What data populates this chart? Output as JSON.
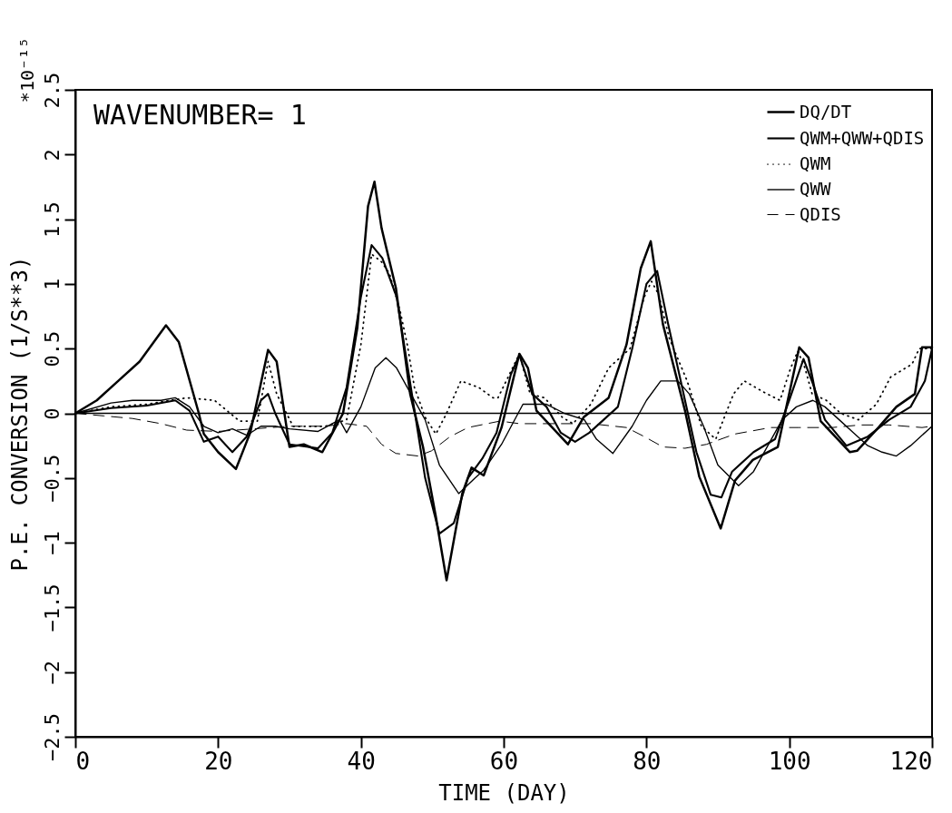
{
  "chart_data": {
    "type": "line",
    "xlabel": "TIME (DAY)",
    "ylabel": "P.E. CONVERSION  (1/S**3)",
    "annotations": [
      "WAVENUMBER= 1",
      "*10⁻¹⁵"
    ],
    "xlim": [
      0,
      120
    ],
    "xticks": [
      0,
      20,
      40,
      60,
      80,
      100,
      120
    ],
    "ylim": [
      -2.5,
      2.5
    ],
    "yticks": [
      -2.5,
      -2,
      -1.5,
      -1,
      -0.5,
      0,
      0.5,
      1,
      1.5,
      2,
      2.5
    ],
    "ref_lines": [
      {
        "axis": "y",
        "value": 0,
        "color": "#000000"
      }
    ],
    "legend": "top right",
    "grid": false,
    "marker": "none",
    "series": [
      {
        "name": "DQ/DT",
        "color": "#000000",
        "line_style": "solid",
        "x": [
          0,
          3,
          6,
          9,
          12.7,
          14.5,
          17.3,
          18,
          20,
          22.5,
          24.5,
          27,
          28.2,
          30,
          32,
          34.6,
          37.5,
          39.5,
          41,
          41.9,
          42.9,
          44.9,
          46.9,
          48.7,
          50.5,
          52,
          54.2,
          55.5,
          57.2,
          59.7,
          62.2,
          63.4,
          64.6,
          69,
          71.2,
          74.7,
          77.2,
          79.2,
          80.6,
          82.3,
          85.4,
          87.4,
          90.4,
          92.4,
          94.9,
          98.4,
          99.4,
          101.4,
          102.7,
          104.4,
          108.5,
          109.5,
          112.5,
          115,
          117.6,
          118.6,
          120
        ],
        "values": [
          0,
          0.1,
          0.25,
          0.4,
          0.68,
          0.55,
          0.0,
          -0.16,
          -0.3,
          -0.43,
          -0.15,
          0.49,
          0.4,
          -0.26,
          -0.24,
          -0.3,
          0.0,
          0.66,
          1.6,
          1.79,
          1.43,
          0.97,
          0.15,
          -0.26,
          -0.8,
          -1.29,
          -0.62,
          -0.42,
          -0.48,
          -0.11,
          0.46,
          0.35,
          0.02,
          -0.24,
          -0.03,
          0.12,
          0.53,
          1.12,
          1.33,
          0.69,
          0.02,
          -0.49,
          -0.89,
          -0.52,
          -0.36,
          -0.26,
          0.0,
          0.51,
          0.43,
          -0.06,
          -0.3,
          -0.29,
          -0.11,
          0.05,
          0.15,
          0.51,
          0.51
        ]
      },
      {
        "name": "QWM+QWW+QDIS",
        "color": "#000000",
        "line_style": "solid",
        "x": [
          0,
          5,
          10,
          14,
          16,
          18,
          20,
          22,
          24,
          26,
          27,
          28,
          30,
          34,
          36,
          38,
          40,
          41.5,
          43,
          45,
          47,
          49,
          51,
          53,
          55,
          57,
          59,
          61,
          62.2,
          64,
          66,
          68,
          70,
          72,
          74,
          76,
          78,
          80,
          81.5,
          83,
          85,
          87,
          89,
          90.5,
          92,
          95,
          98,
          100,
          102,
          103.5,
          105,
          108,
          111,
          114,
          117,
          119,
          120
        ],
        "values": [
          0,
          0.04,
          0.06,
          0.1,
          0.02,
          -0.22,
          -0.18,
          -0.3,
          -0.18,
          0.1,
          0.15,
          0.0,
          -0.24,
          -0.27,
          -0.15,
          0.2,
          0.9,
          1.3,
          1.2,
          0.9,
          0.2,
          -0.5,
          -0.93,
          -0.85,
          -0.5,
          -0.35,
          -0.15,
          0.3,
          0.45,
          0.15,
          0.05,
          -0.15,
          -0.22,
          -0.15,
          -0.05,
          0.05,
          0.5,
          1.0,
          1.1,
          0.7,
          0.2,
          -0.3,
          -0.63,
          -0.65,
          -0.45,
          -0.3,
          -0.2,
          0.1,
          0.42,
          0.2,
          -0.05,
          -0.25,
          -0.18,
          -0.05,
          0.05,
          0.25,
          0.5
        ]
      },
      {
        "name": "QWM",
        "color": "#000000",
        "line_style": "dotted",
        "x": [
          0,
          5,
          10,
          15.6,
          19.5,
          23,
          25.5,
          27,
          28.2,
          30.5,
          35,
          38,
          40,
          41.5,
          42.9,
          44,
          45.5,
          46.5,
          47.5,
          49,
          50.5,
          52,
          54,
          56.5,
          58.5,
          59.2,
          60.8,
          62.2,
          63.7,
          65.7,
          68.2,
          69.7,
          72.2,
          74.7,
          77.7,
          79.7,
          80.7,
          81.7,
          83.2,
          85.7,
          87.7,
          89.7,
          92.2,
          93.7,
          96.2,
          98.7,
          100.2,
          101.2,
          102.2,
          103.2,
          105.2,
          107.2,
          109.7,
          112.2,
          114.2,
          117.2,
          118.2,
          120
        ],
        "values": [
          0,
          0.05,
          0.07,
          0.12,
          0.1,
          -0.06,
          -0.06,
          0.4,
          0.15,
          -0.1,
          -0.1,
          -0.05,
          0.53,
          1.23,
          1.17,
          1.08,
          0.79,
          0.53,
          0.2,
          -0.03,
          -0.16,
          0.0,
          0.25,
          0.2,
          0.12,
          0.12,
          0.3,
          0.46,
          0.15,
          0.12,
          -0.03,
          -0.08,
          0.07,
          0.35,
          0.5,
          0.9,
          1.02,
          0.92,
          0.58,
          0.25,
          -0.1,
          -0.2,
          0.15,
          0.25,
          0.17,
          0.1,
          0.35,
          0.48,
          0.35,
          0.15,
          0.1,
          0.0,
          -0.05,
          0.07,
          0.28,
          0.38,
          0.5,
          0.5
        ]
      },
      {
        "name": "QWW",
        "color": "#000000",
        "line_style": "solid",
        "x": [
          0,
          5,
          8,
          12,
          14,
          16,
          18,
          20,
          22,
          24,
          26,
          28,
          30,
          34,
          36,
          37,
          38,
          40,
          42,
          43.5,
          45,
          47,
          49,
          51,
          53.7,
          56,
          57.2,
          59.7,
          62.7,
          66,
          68.5,
          71.3,
          73,
          75.3,
          78,
          80,
          82,
          84.4,
          86,
          88,
          90,
          92.9,
          95,
          97,
          99,
          101,
          103.3,
          105,
          107,
          109,
          111,
          113,
          115,
          117,
          120
        ],
        "values": [
          0,
          0.08,
          0.1,
          0.1,
          0.12,
          0.05,
          -0.1,
          -0.15,
          -0.12,
          -0.17,
          -0.1,
          -0.1,
          -0.12,
          -0.14,
          -0.08,
          -0.05,
          -0.15,
          0.05,
          0.35,
          0.43,
          0.35,
          0.15,
          -0.05,
          -0.4,
          -0.62,
          -0.5,
          -0.44,
          -0.24,
          0.07,
          0.07,
          0.0,
          -0.05,
          -0.2,
          -0.31,
          -0.1,
          0.1,
          0.25,
          0.25,
          0.15,
          -0.1,
          -0.4,
          -0.56,
          -0.45,
          -0.25,
          -0.05,
          0.05,
          0.1,
          0.05,
          -0.05,
          -0.15,
          -0.25,
          -0.3,
          -0.33,
          -0.25,
          -0.1
        ]
      },
      {
        "name": "QDIS",
        "color": "#000000",
        "line_style": "dashed",
        "x": [
          0,
          4,
          8,
          12,
          15.6,
          20,
          25,
          30,
          35,
          38,
          40.8,
          42.9,
          44.9,
          48,
          49.9,
          52.5,
          55,
          59.5,
          62.2,
          67.2,
          72.2,
          77.2,
          79.7,
          82.3,
          85.4,
          88.4,
          92.4,
          97.4,
          101.4,
          106,
          110,
          114,
          118.6,
          120
        ],
        "values": [
          0,
          -0.02,
          -0.04,
          -0.08,
          -0.13,
          -0.14,
          -0.12,
          -0.1,
          -0.1,
          -0.08,
          -0.1,
          -0.24,
          -0.31,
          -0.33,
          -0.29,
          -0.18,
          -0.11,
          -0.06,
          -0.08,
          -0.08,
          -0.08,
          -0.11,
          -0.18,
          -0.26,
          -0.27,
          -0.24,
          -0.16,
          -0.11,
          -0.11,
          -0.11,
          -0.09,
          -0.09,
          -0.11,
          -0.1
        ]
      }
    ]
  }
}
